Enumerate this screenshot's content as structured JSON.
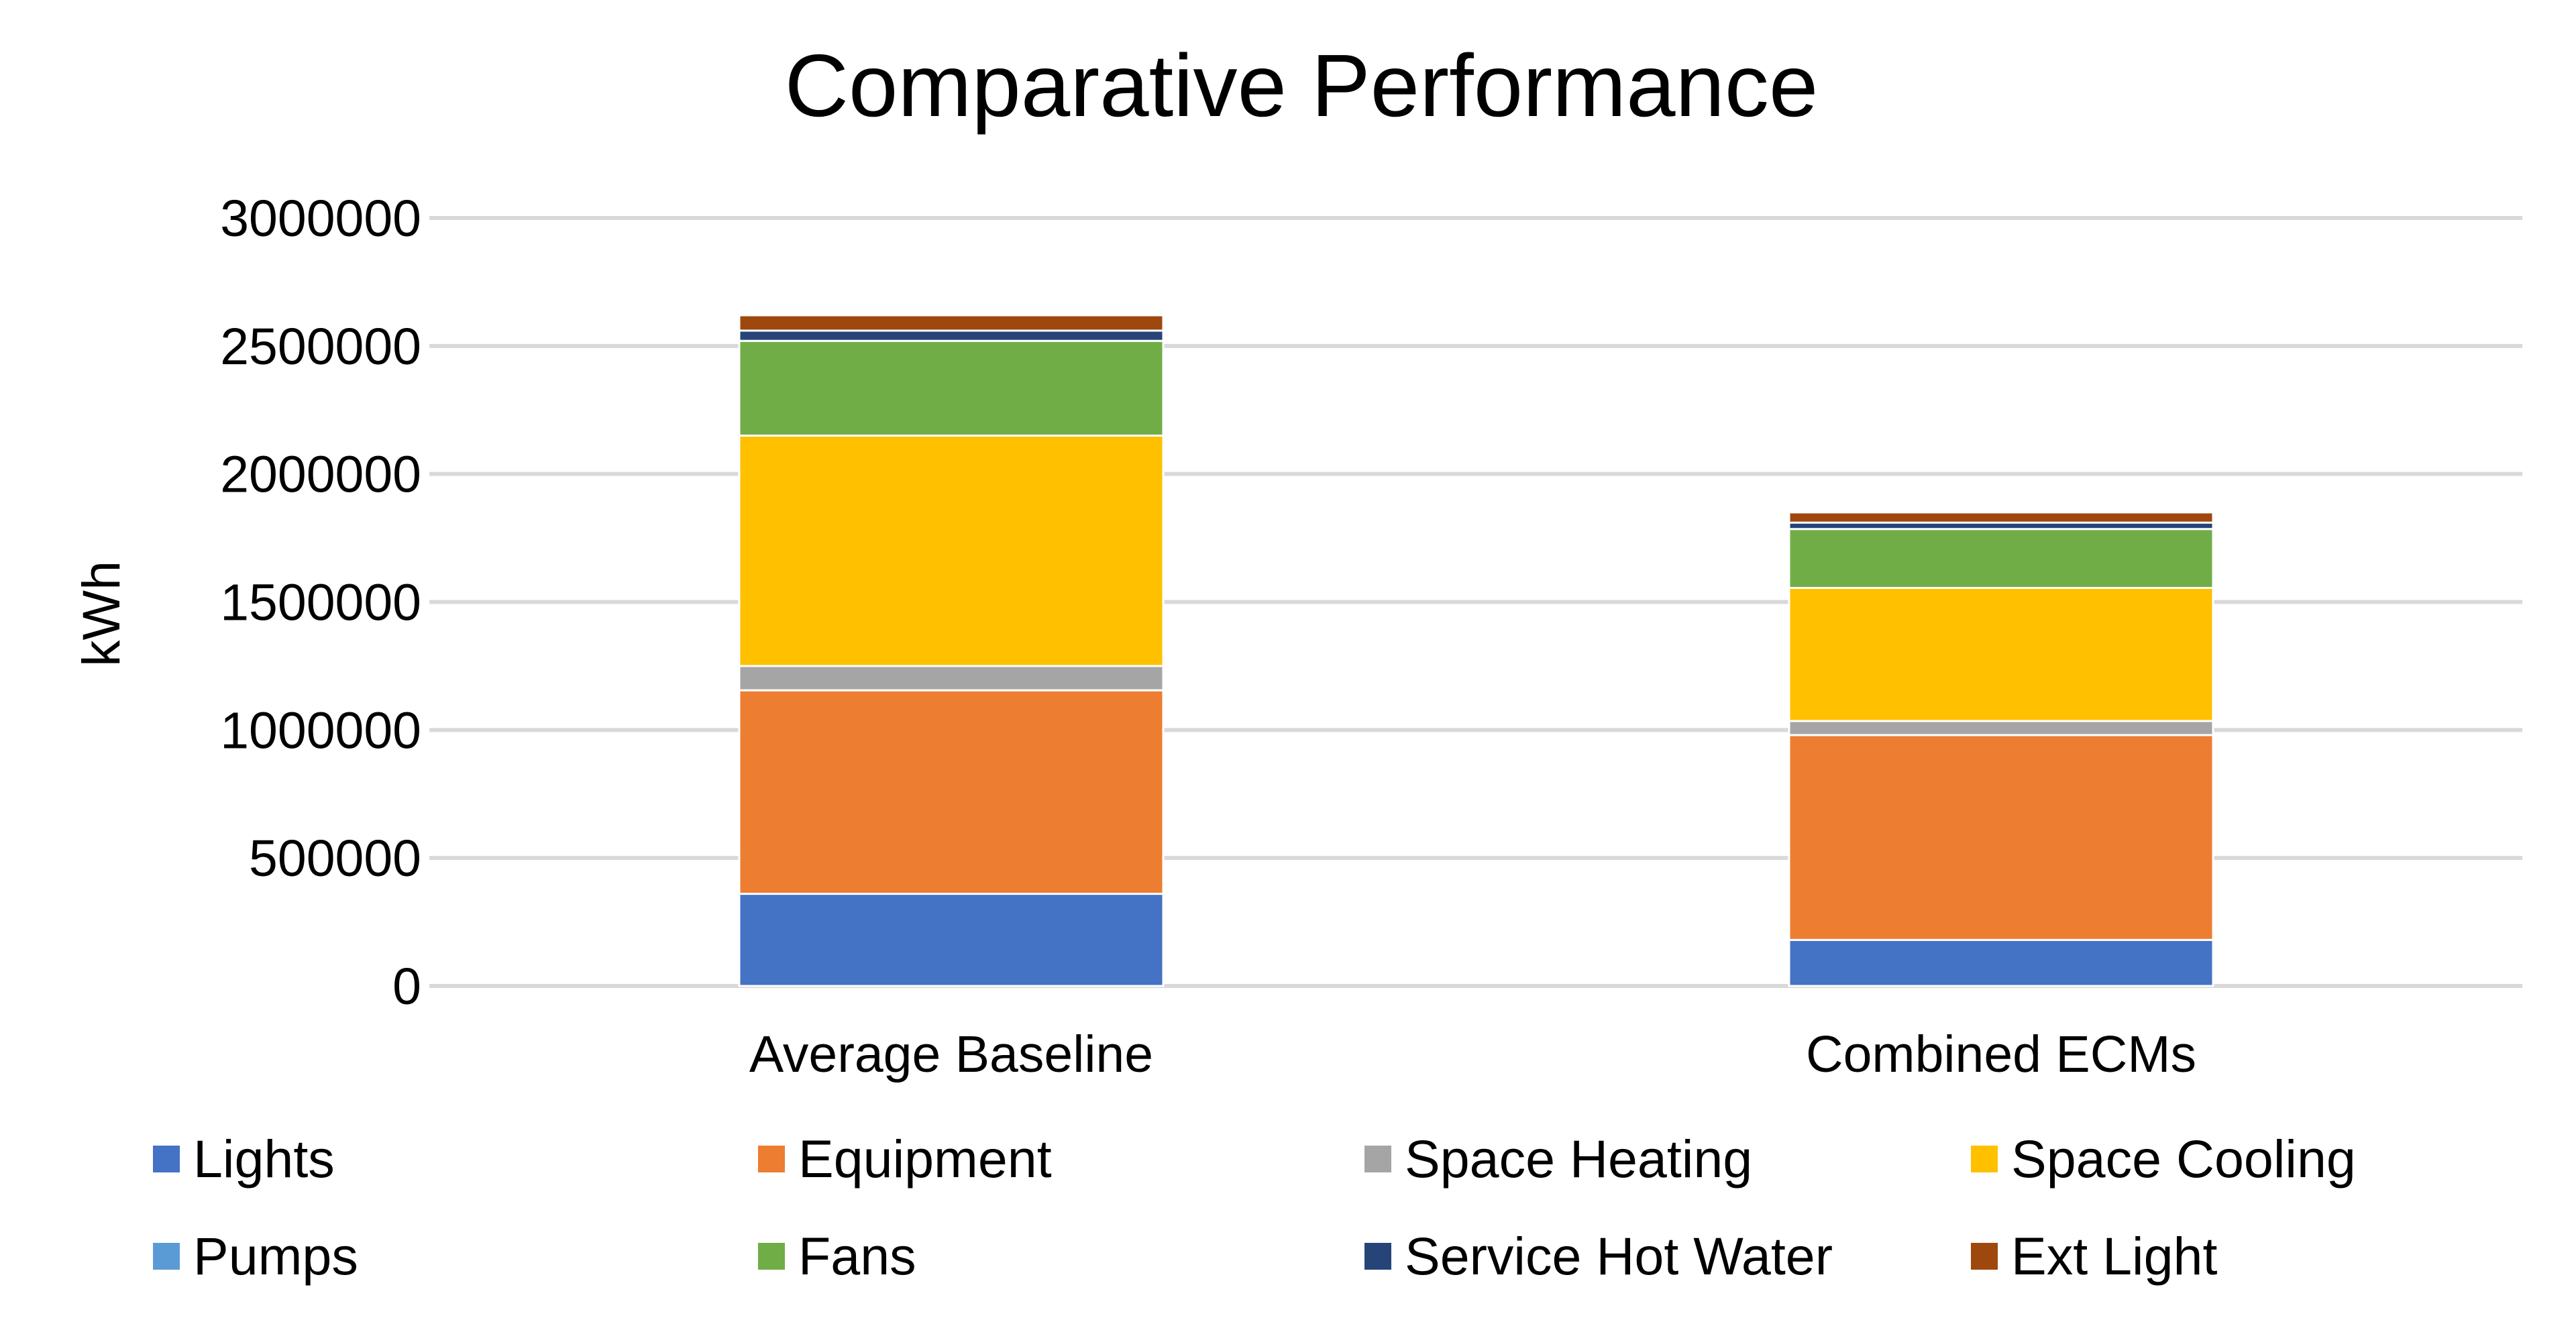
{
  "chart_data": {
    "type": "bar",
    "stacked": true,
    "title": "Comparative Performance",
    "xlabel": "",
    "ylabel": "kWh",
    "ylim": [
      0,
      3000000
    ],
    "yticks": [
      "0",
      "500000",
      "1000000",
      "1500000",
      "2000000",
      "2500000",
      "3000000"
    ],
    "yticks_values": [
      0,
      500000,
      1000000,
      1500000,
      2000000,
      2500000,
      3000000
    ],
    "grid": true,
    "legend_position": "bottom",
    "categories": [
      "Average Baseline",
      "Combined ECMs"
    ],
    "series": [
      {
        "name": "Lights",
        "color": "#4472c4",
        "values": [
          360000,
          180000
        ]
      },
      {
        "name": "Equipment",
        "color": "#ed7d31",
        "values": [
          795000,
          800000
        ]
      },
      {
        "name": "Space Heating",
        "color": "#a5a5a5",
        "values": [
          95000,
          55000
        ]
      },
      {
        "name": "Space Cooling",
        "color": "#ffc000",
        "values": [
          900000,
          520000
        ]
      },
      {
        "name": "Pumps",
        "color": "#5b9bd5",
        "values": [
          0,
          0
        ]
      },
      {
        "name": "Fans",
        "color": "#70ad47",
        "values": [
          370000,
          230000
        ]
      },
      {
        "name": "Service Hot Water",
        "color": "#264478",
        "values": [
          40000,
          25000
        ]
      },
      {
        "name": "Ext Light",
        "color": "#9e480e",
        "values": [
          60000,
          40000
        ]
      }
    ]
  }
}
